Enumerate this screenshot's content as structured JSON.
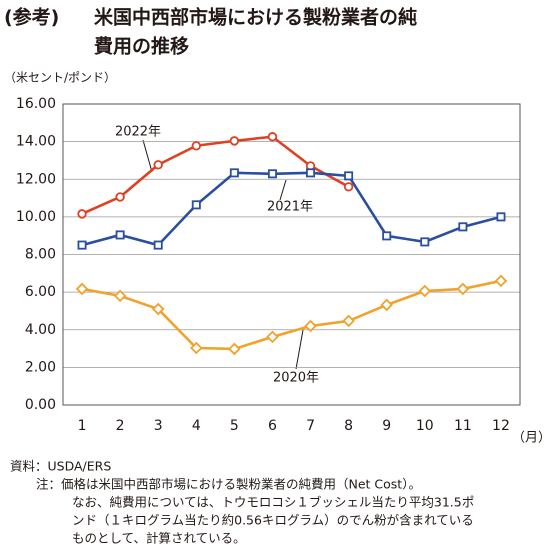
{
  "chart_data": {
    "type": "line",
    "title_tag": "(参考)",
    "title_lines": [
      "米国中西部市場における製粉業者の純",
      "費用の推移"
    ],
    "y_unit": "（米セント/ポンド）",
    "x_unit": "（月）",
    "categories": [
      "1",
      "2",
      "3",
      "4",
      "5",
      "6",
      "7",
      "8",
      "9",
      "10",
      "11",
      "12"
    ],
    "ylim": [
      0,
      16
    ],
    "yticks": [
      {
        "value": 0,
        "label": "0.00"
      },
      {
        "value": 2,
        "label": "2.00"
      },
      {
        "value": 4,
        "label": "4.00"
      },
      {
        "value": 6,
        "label": "6.00"
      },
      {
        "value": 8,
        "label": "8.00"
      },
      {
        "value": 10,
        "label": "10.00"
      },
      {
        "value": 12,
        "label": "12.00"
      },
      {
        "value": 14,
        "label": "14.00"
      },
      {
        "value": 16,
        "label": "16.00"
      }
    ],
    "grid": true,
    "series": [
      {
        "name": "2022年",
        "color": "#e0401f",
        "marker": "circle",
        "values": [
          10.16,
          11.06,
          12.77,
          13.78,
          14.04,
          14.26,
          12.71,
          11.6,
          null,
          null,
          null,
          null
        ]
      },
      {
        "name": "2021年",
        "color": "#2a4f9e",
        "marker": "square",
        "values": [
          8.5,
          9.04,
          8.5,
          10.64,
          12.34,
          12.29,
          12.34,
          12.18,
          8.99,
          8.67,
          9.47,
          10.0
        ]
      },
      {
        "name": "2020年",
        "color": "#f0a22a",
        "marker": "diamond",
        "values": [
          6.17,
          5.8,
          5.1,
          3.03,
          2.98,
          3.62,
          4.2,
          4.47,
          5.32,
          6.06,
          6.17,
          6.6
        ]
      }
    ],
    "source": "資料：USDA/ERS",
    "notes": [
      "注：価格は米国中西部市場における製粉業者の純費用（Net Cost）。",
      "なお、純費用については、トウモロコシ１ブッシェル当たり平均31.5ポ",
      "ンド（１キログラム当たり約0.56キログラム）のでん粉が含まれている",
      "ものとして、計算されている。"
    ]
  }
}
